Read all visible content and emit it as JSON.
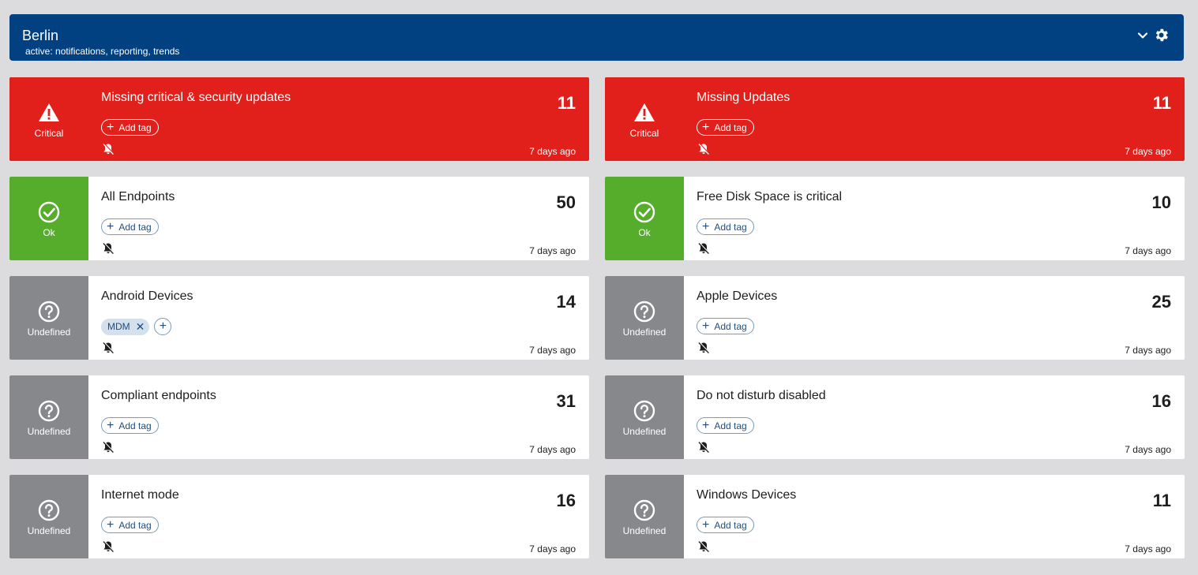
{
  "header": {
    "title": "Berlin",
    "subtitle": "active: notifications, reporting, trends"
  },
  "add_tag_label": "Add tag",
  "colors": {
    "header": "#014182",
    "critical": "#e1201c",
    "ok": "#56ad2c",
    "undefined": "#86888b"
  },
  "cards": [
    {
      "name": "Missing critical & security updates",
      "count": "11",
      "status": "Critical",
      "time": "7 days ago"
    },
    {
      "name": "Missing Updates",
      "count": "11",
      "status": "Critical",
      "time": "7 days ago"
    },
    {
      "name": "All Endpoints",
      "count": "50",
      "status": "Ok",
      "time": "7 days ago"
    },
    {
      "name": "Free Disk Space is critical",
      "count": "10",
      "status": "Ok",
      "time": "7 days ago"
    },
    {
      "name": "Android Devices",
      "count": "14",
      "status": "Undefined",
      "time": "7 days ago",
      "tag": "MDM"
    },
    {
      "name": "Apple Devices",
      "count": "25",
      "status": "Undefined",
      "time": "7 days ago"
    },
    {
      "name": "Compliant endpoints",
      "count": "31",
      "status": "Undefined",
      "time": "7 days ago"
    },
    {
      "name": "Do not disturb disabled",
      "count": "16",
      "status": "Undefined",
      "time": "7 days ago"
    },
    {
      "name": "Internet mode",
      "count": "16",
      "status": "Undefined",
      "time": "7 days ago"
    },
    {
      "name": "Windows Devices",
      "count": "11",
      "status": "Undefined",
      "time": "7 days ago"
    }
  ]
}
